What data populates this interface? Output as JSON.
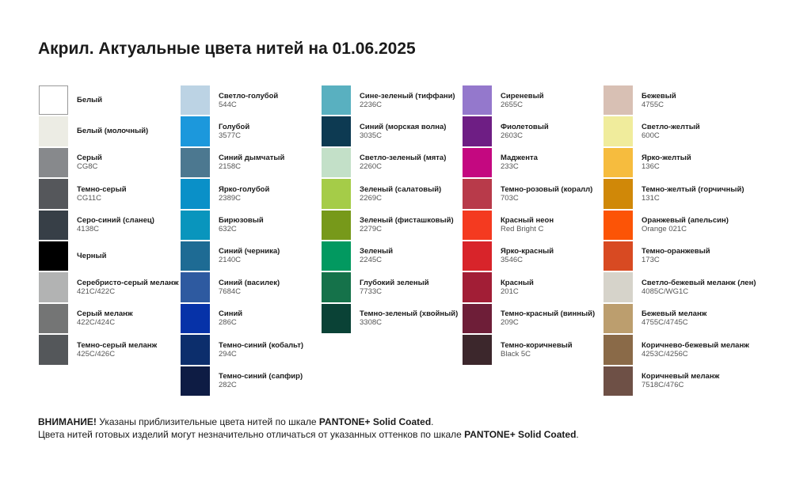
{
  "title": "Акрил. Актуальные цвета нитей на 01.06.2025",
  "columns": [
    [
      {
        "name": "Белый",
        "code": "",
        "color": "#ffffff"
      },
      {
        "name": "Белый (молочный)",
        "code": "",
        "color": "#ecece4"
      },
      {
        "name": "Серый",
        "code": "CG8C",
        "color": "#87898c"
      },
      {
        "name": "Темно-серый",
        "code": "CG11C",
        "color": "#55575b"
      },
      {
        "name": "Серо-синий (сланец)",
        "code": "4138C",
        "color": "#373f47"
      },
      {
        "name": "Черный",
        "code": "",
        "color": "#000000"
      },
      {
        "name": "Серебристо-серый меланж",
        "code": "421C/422C",
        "color": "#b2b3b3"
      },
      {
        "name": "Серый меланж",
        "code": "422C/424C",
        "color": "#747575"
      },
      {
        "name": "Темно-серый меланж",
        "code": "425C/426C",
        "color": "#54575a"
      }
    ],
    [
      {
        "name": "Светло-голубой",
        "code": "544C",
        "color": "#bcd3e4"
      },
      {
        "name": "Голубой",
        "code": "3577C",
        "color": "#1c98dc"
      },
      {
        "name": "Синий дымчатый",
        "code": "2158C",
        "color": "#4c7890"
      },
      {
        "name": "Ярко-голубой",
        "code": "2389C",
        "color": "#0a90c8"
      },
      {
        "name": "Бирюзовый",
        "code": "632C",
        "color": "#0995bd"
      },
      {
        "name": "Синий (черника)",
        "code": "2140C",
        "color": "#1e6b94"
      },
      {
        "name": "Синий (василек)",
        "code": "7684C",
        "color": "#2e5aa0"
      },
      {
        "name": "Синий",
        "code": "286C",
        "color": "#0632a8"
      },
      {
        "name": "Темно-синий (кобальт)",
        "code": "294C",
        "color": "#0c2e6c"
      },
      {
        "name": "Темно-синий (сапфир)",
        "code": "282C",
        "color": "#0e1c44"
      }
    ],
    [
      {
        "name": "Сине-зеленый (тиффани)",
        "code": "2236C",
        "color": "#59b0c0"
      },
      {
        "name": "Синий (морская волна)",
        "code": "3035C",
        "color": "#0d3a52"
      },
      {
        "name": "Светло-зеленый (мята)",
        "code": "2260C",
        "color": "#c3e0c8"
      },
      {
        "name": "Зеленый (салатовый)",
        "code": "2269C",
        "color": "#a5cc48"
      },
      {
        "name": "Зеленый (фисташковый)",
        "code": "2279C",
        "color": "#77991a"
      },
      {
        "name": "Зеленый",
        "code": "2245C",
        "color": "#029960"
      },
      {
        "name": "Глубокий зеленый",
        "code": "7733C",
        "color": "#15724a"
      },
      {
        "name": "Темно-зеленый (хвойный)",
        "code": "3308C",
        "color": "#0a4236"
      }
    ],
    [
      {
        "name": "Сиреневый",
        "code": "2655C",
        "color": "#9478cc"
      },
      {
        "name": "Фиолетовый",
        "code": "2603C",
        "color": "#6e1e84"
      },
      {
        "name": "Маджента",
        "code": "233C",
        "color": "#c40880"
      },
      {
        "name": "Темно-розовый (коралл)",
        "code": "703C",
        "color": "#b83a4a"
      },
      {
        "name": "Красный неон",
        "code": "Red Bright C",
        "color": "#f43a20"
      },
      {
        "name": "Ярко-красный",
        "code": "3546C",
        "color": "#d8242a"
      },
      {
        "name": "Красный",
        "code": "201C",
        "color": "#a21e36"
      },
      {
        "name": "Темно-красный (винный)",
        "code": "209C",
        "color": "#6e1e38"
      },
      {
        "name": "Темно-коричневый",
        "code": "Black 5C",
        "color": "#3c272c"
      }
    ],
    [
      {
        "name": "Бежевый",
        "code": "4755C",
        "color": "#d8c0b4"
      },
      {
        "name": "Светло-желтый",
        "code": "600C",
        "color": "#f0ec9c"
      },
      {
        "name": "Ярко-желтый",
        "code": "136C",
        "color": "#f6bc3e"
      },
      {
        "name": "Темно-желтый (горчичный)",
        "code": "131C",
        "color": "#d08808"
      },
      {
        "name": "Оранжевый (апельсин)",
        "code": "Orange 021C",
        "color": "#fc5406"
      },
      {
        "name": "Темно-оранжевый",
        "code": "173C",
        "color": "#d84a22"
      },
      {
        "name": "Светло-бежевый меланж (лен)",
        "code": "4085C/WG1C",
        "color": "#d6d3ca"
      },
      {
        "name": "Бежевый меланж",
        "code": "4755C/4745C",
        "color": "#bc9e6e"
      },
      {
        "name": "Коричнево-бежевый меланж",
        "code": "4253C/4256C",
        "color": "#8a6a48"
      },
      {
        "name": "Коричневый меланж",
        "code": "7518C/476C",
        "color": "#6e5046"
      }
    ]
  ],
  "footer": {
    "line1_bold": "ВНИМАНИЕ!",
    "line1_text": " Указаны приблизительные цвета нитей по шкале ",
    "line1_brand": "PANTONE+ Solid Coated",
    "line1_end": ".",
    "line2_text": "Цвета нитей готовых изделий могут незначительно отличаться от указанных оттенков по шкале ",
    "line2_brand": "PANTONE+ Solid Coated",
    "line2_end": "."
  }
}
